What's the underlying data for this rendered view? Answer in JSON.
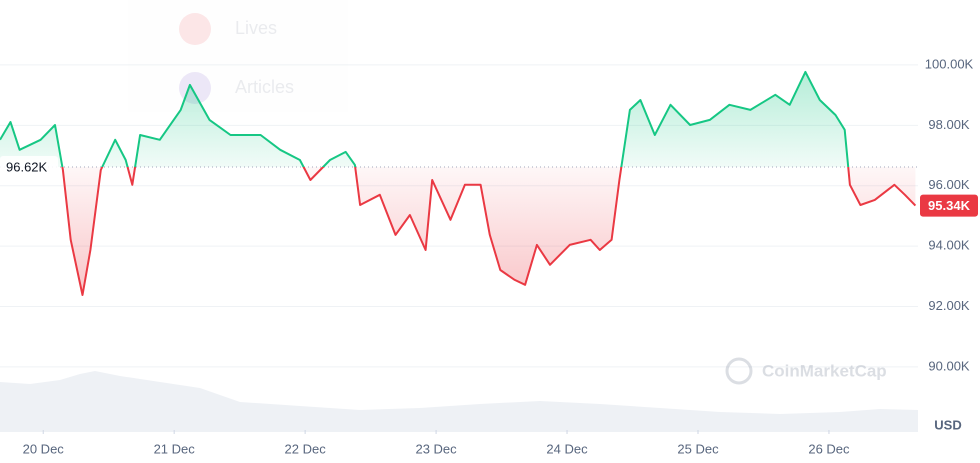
{
  "chart_data": {
    "type": "line",
    "x": [
      -0.33,
      -0.25,
      -0.18,
      -0.02,
      0.09,
      0.15,
      0.21,
      0.3,
      0.36,
      0.44,
      0.55,
      0.63,
      0.68,
      0.74,
      0.89,
      1.05,
      1.12,
      1.27,
      1.43,
      1.66,
      1.81,
      1.96,
      2.04,
      2.19,
      2.31,
      2.38,
      2.42,
      2.57,
      2.69,
      2.8,
      2.92,
      2.97,
      3.11,
      3.22,
      3.34,
      3.41,
      3.49,
      3.6,
      3.68,
      3.77,
      3.87,
      4.02,
      4.18,
      4.25,
      4.34,
      4.4,
      4.48,
      4.56,
      4.67,
      4.79,
      4.94,
      5.09,
      5.24,
      5.4,
      5.59,
      5.7,
      5.82,
      5.93,
      6.05,
      6.12,
      6.16,
      6.24,
      6.35,
      6.5,
      6.58,
      6.66
    ],
    "series": [
      {
        "values": [
          97520,
          98110,
          97190,
          97520,
          98010,
          96520,
          94210,
          92380,
          93870,
          96520,
          97520,
          96850,
          96030,
          97680,
          97520,
          98510,
          99340,
          98180,
          97680,
          97680,
          97190,
          96850,
          96190,
          96850,
          97120,
          96690,
          95360,
          95700,
          94370,
          95030,
          93870,
          96190,
          94870,
          96030,
          96030,
          94370,
          93210,
          92880,
          92720,
          94040,
          93380,
          94040,
          94210,
          93870,
          94210,
          96190,
          98510,
          98840,
          97680,
          98680,
          98010,
          98180,
          98680,
          98510,
          99010,
          98680,
          99770,
          98840,
          98340,
          97850,
          96030,
          95360,
          95530,
          96030,
          95700,
          95340
        ],
        "value_labels": [
          null,
          null,
          null,
          null,
          null,
          null,
          null,
          null,
          null,
          null,
          null,
          null,
          null,
          null,
          null,
          null,
          null,
          null,
          null,
          null,
          null,
          null,
          null,
          null,
          null,
          null,
          null,
          null,
          null,
          null,
          null,
          null,
          null,
          null,
          null,
          null,
          null,
          null,
          null,
          null,
          null,
          null,
          null,
          null,
          null,
          null,
          null,
          null,
          null,
          null,
          null,
          null,
          null,
          null,
          null,
          null,
          null,
          null,
          null,
          null,
          null,
          null,
          null,
          null,
          null,
          "95.34K"
        ]
      }
    ],
    "up_color": "#16c784",
    "down_color": "#ea3943",
    "baseline": {
      "value": 96620,
      "label": "96.62K"
    },
    "xlim": [
      -0.33,
      6.68
    ],
    "xticks": [
      {
        "value": 0,
        "label": "20 Dec"
      },
      {
        "value": 1,
        "label": "21 Dec"
      },
      {
        "value": 2,
        "label": "22 Dec"
      },
      {
        "value": 3,
        "label": "23 Dec"
      },
      {
        "value": 4,
        "label": "24 Dec"
      },
      {
        "value": 5,
        "label": "25 Dec"
      },
      {
        "value": 6,
        "label": "26 Dec"
      }
    ],
    "ylim": [
      87910,
      102150
    ],
    "yticks": [
      {
        "value": 90000,
        "label": "90.00K"
      },
      {
        "value": 92000,
        "label": "92.00K"
      },
      {
        "value": 94000,
        "label": "94.00K"
      },
      {
        "value": 96000,
        "label": "96.00K"
      },
      {
        "value": 98000,
        "label": "98.00K"
      },
      {
        "value": 100000,
        "label": "100.00K"
      }
    ],
    "y_label": "USD",
    "grid": true,
    "watermark": "CoinMarketCap",
    "background_menu": [
      "Lives",
      "Articles"
    ]
  }
}
